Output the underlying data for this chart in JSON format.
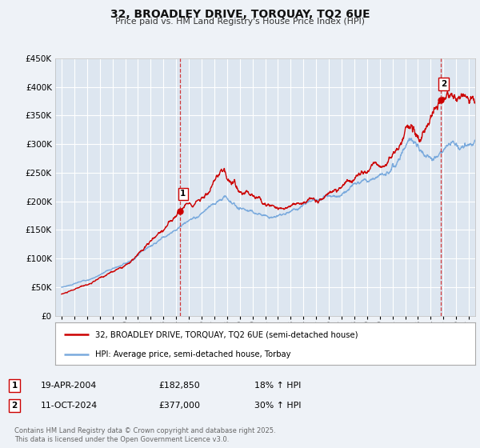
{
  "title": "32, BROADLEY DRIVE, TORQUAY, TQ2 6UE",
  "subtitle": "Price paid vs. HM Land Registry's House Price Index (HPI)",
  "background_color": "#eef2f7",
  "plot_bg_color": "#dde6f0",
  "grid_color": "#ffffff",
  "ylim": [
    0,
    450000
  ],
  "xlim_start": 1994.5,
  "xlim_end": 2027.5,
  "yticks": [
    0,
    50000,
    100000,
    150000,
    200000,
    250000,
    300000,
    350000,
    400000,
    450000
  ],
  "xticks": [
    1995,
    1996,
    1997,
    1998,
    1999,
    2000,
    2001,
    2002,
    2003,
    2004,
    2005,
    2006,
    2007,
    2008,
    2009,
    2010,
    2011,
    2012,
    2013,
    2014,
    2015,
    2016,
    2017,
    2018,
    2019,
    2020,
    2021,
    2022,
    2023,
    2024,
    2025,
    2026,
    2027
  ],
  "red_color": "#cc0000",
  "blue_color": "#7aaadd",
  "sale1_x": 2004.3,
  "sale1_y": 182850,
  "sale2_x": 2024.78,
  "sale2_y": 377000,
  "legend_line1": "32, BROADLEY DRIVE, TORQUAY, TQ2 6UE (semi-detached house)",
  "legend_line2": "HPI: Average price, semi-detached house, Torbay",
  "sale1_date": "19-APR-2004",
  "sale1_price": "£182,850",
  "sale1_hpi": "18% ↑ HPI",
  "sale2_date": "11-OCT-2024",
  "sale2_price": "£377,000",
  "sale2_hpi": "30% ↑ HPI",
  "footer": "Contains HM Land Registry data © Crown copyright and database right 2025.\nThis data is licensed under the Open Government Licence v3.0."
}
